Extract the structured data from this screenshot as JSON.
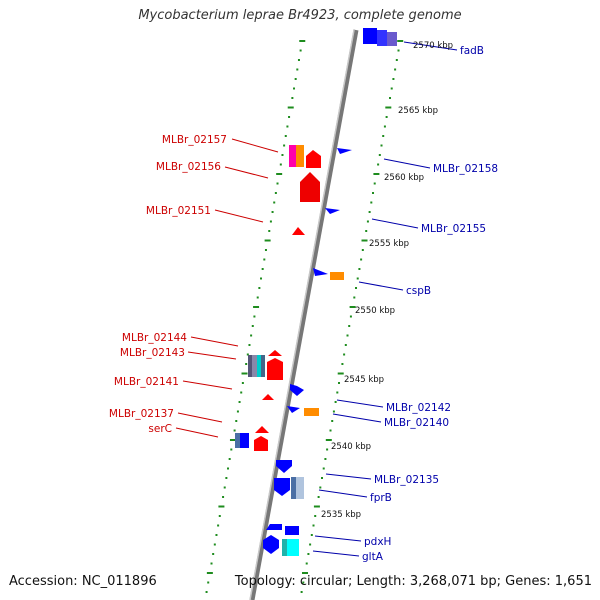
{
  "title": "Mycobacterium leprae Br4923, complete genome",
  "footer": {
    "accession": "Accession: NC_011896",
    "topology": "Topology: circular; Length: 3,268,071 bp; Genes: 1,651"
  },
  "colors": {
    "backbone": "#8a8a8a",
    "tick": "#1e8c1e",
    "left_label": "#cc0000",
    "right_label": "#0000aa",
    "scale_text": "#111111",
    "gene_red": "#ff0000",
    "gene_blue": "#0000ff",
    "gene_orange": "#ff8c00",
    "gene_magenta": "#ff00aa",
    "gene_cyan": "#00ffff",
    "gene_slate": "#4a6fa5"
  },
  "scale_labels": [
    "2570 kbp",
    "2565 kbp",
    "2560 kbp",
    "2555 kbp",
    "2550 kbp",
    "2545 kbp",
    "2540 kbp",
    "2535 kbp"
  ],
  "left_genes": [
    "MLBr_02157",
    "MLBr_02156",
    "MLBr_02151",
    "MLBr_02144",
    "MLBr_02143",
    "MLBr_02141",
    "MLBr_02137",
    "serC"
  ],
  "right_genes": [
    "fadB",
    "MLBr_02158",
    "MLBr_02155",
    "cspB",
    "MLBr_02142",
    "MLBr_02140",
    "MLBr_02135",
    "fprB",
    "pdxH",
    "gltA"
  ]
}
